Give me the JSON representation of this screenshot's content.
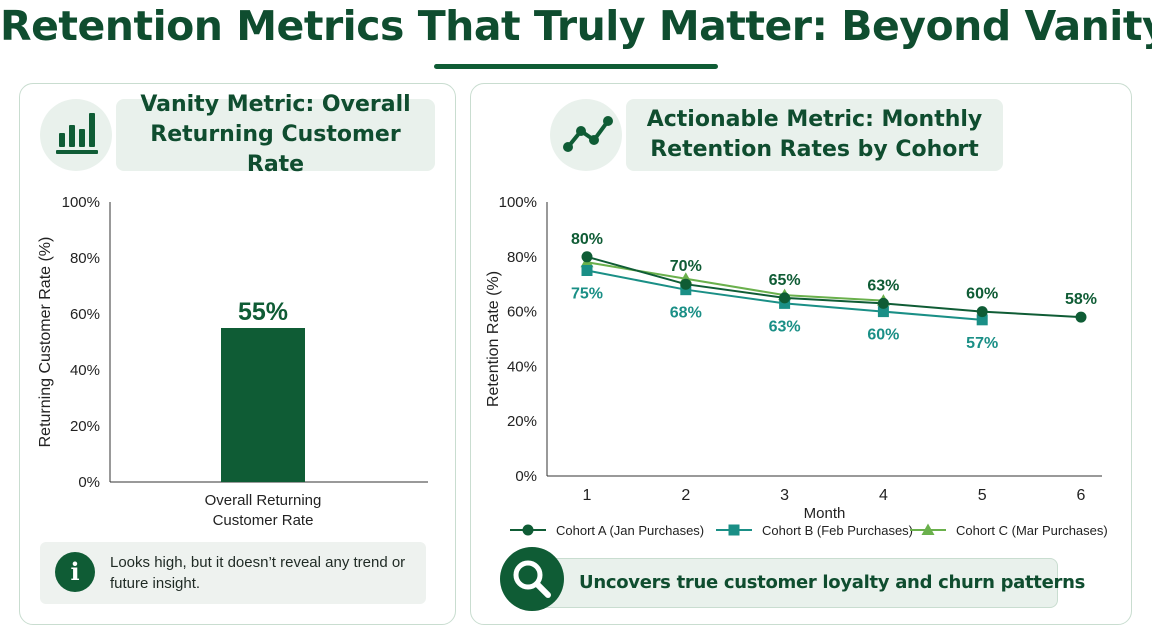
{
  "page": {
    "title": "Retention Metrics That Truly Matter: Beyond Vanity"
  },
  "left_panel": {
    "icon": "bar-chart-icon",
    "header": "Vanity Metric: Overall Returning Customer Rate",
    "note_icon": "info-icon",
    "note": "Looks high, but it doesn’t reveal any trend or future insight."
  },
  "right_panel": {
    "icon": "line-trend-icon",
    "header": "Actionable Metric: Monthly Retention Rates by Cohort",
    "insight_icon": "magnifier-icon",
    "insight": "Uncovers true customer loyalty and churn patterns"
  },
  "colors": {
    "dark_green": "#0f5c35",
    "teal": "#1a8f86",
    "light_green": "#6ab04c",
    "panel_tint": "#e9f1ec"
  },
  "chart_data": [
    {
      "type": "bar",
      "categories": [
        "Overall Returning Customer Rate"
      ],
      "category_lines": [
        "Overall Returning",
        "Customer Rate"
      ],
      "values": [
        55
      ],
      "data_labels": [
        "55%"
      ],
      "ylabel": "Returning Customer Rate (%)",
      "ylim": [
        0,
        100
      ],
      "yticks": [
        0,
        20,
        40,
        60,
        80,
        100
      ],
      "ytick_labels": [
        "0%",
        "20%",
        "40%",
        "60%",
        "80%",
        "100%"
      ],
      "color": "#0f5c35"
    },
    {
      "type": "line",
      "xlabel": "Month",
      "ylabel": "Retention Rate (%)",
      "x": [
        1,
        2,
        3,
        4,
        5,
        6
      ],
      "xtick_labels": [
        "1",
        "2",
        "3",
        "4",
        "5",
        "6"
      ],
      "ylim": [
        0,
        100
      ],
      "yticks": [
        0,
        20,
        40,
        60,
        80,
        100
      ],
      "ytick_labels": [
        "0%",
        "20%",
        "40%",
        "60%",
        "80%",
        "100%"
      ],
      "legend_position": "bottom",
      "series": [
        {
          "name": "Cohort A (Jan Purchases)",
          "x": [
            1,
            2,
            3,
            4,
            5,
            6
          ],
          "values": [
            80,
            70,
            65,
            63,
            60,
            58
          ],
          "labels": [
            "80%",
            "70%",
            "65%",
            "63%",
            "60%",
            "58%"
          ],
          "marker": "circle",
          "color": "#0f5c35"
        },
        {
          "name": "Cohort B (Feb Purchases)",
          "x": [
            1,
            2,
            3,
            4,
            5
          ],
          "values": [
            75,
            68,
            63,
            60,
            57
          ],
          "labels": [
            "75%",
            "68%",
            "63%",
            "60%",
            "57%"
          ],
          "marker": "square",
          "color": "#1a8f86"
        },
        {
          "name": "Cohort C (Mar Purchases)",
          "x": [
            1,
            2,
            3,
            4
          ],
          "values": [
            78,
            72,
            66,
            64
          ],
          "labels": [],
          "marker": "triangle",
          "color": "#6ab04c"
        }
      ]
    }
  ]
}
